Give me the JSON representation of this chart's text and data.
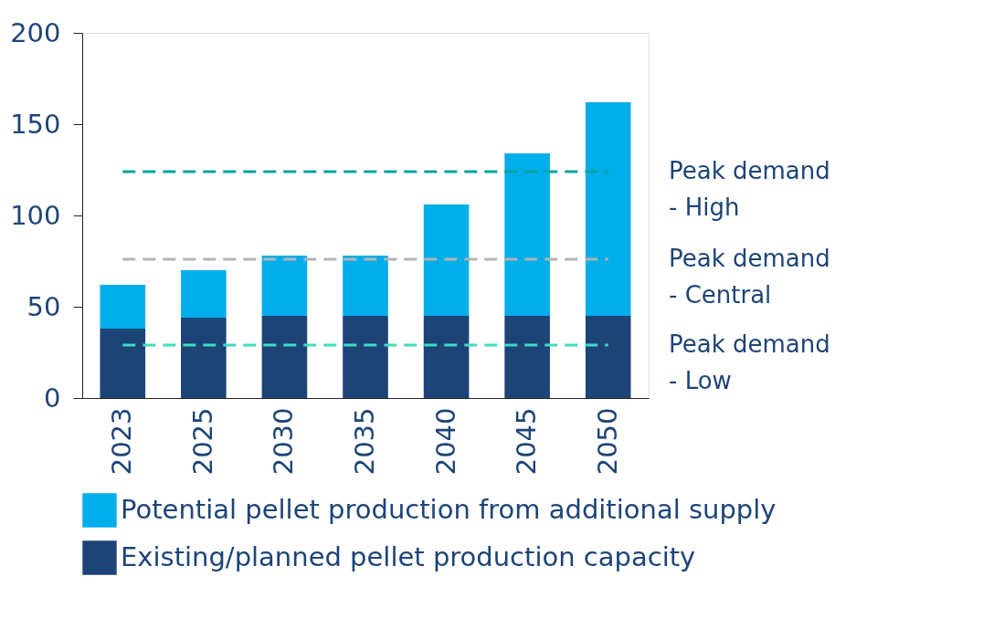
{
  "chart_data": {
    "type": "bar",
    "stacked": true,
    "categories": [
      "2023",
      "2025",
      "2030",
      "2035",
      "2040",
      "2045",
      "2050"
    ],
    "series": [
      {
        "name": "Existing/planned pellet production capacity",
        "color": "#1d4477",
        "values": [
          38,
          44,
          45,
          45,
          45,
          45,
          45
        ]
      },
      {
        "name": "Potential pellet production from additional supply",
        "color": "#00aeea",
        "values": [
          24,
          26,
          33,
          33,
          61,
          89,
          117
        ]
      }
    ],
    "ylim": [
      0,
      200
    ],
    "yticks": [
      0,
      50,
      100,
      150,
      200
    ],
    "grid": false,
    "legend": "bottom",
    "ref_lines": [
      {
        "axis": "y",
        "value": 124,
        "label": "Peak demand\n- High",
        "color": "#00a39b",
        "line_style": "dashed"
      },
      {
        "axis": "y",
        "value": 76,
        "label": "Peak demand\n- Central",
        "color": "#b3b3b3",
        "line_style": "dashed"
      },
      {
        "axis": "y",
        "value": 29,
        "label": "Peak demand\n- Low",
        "color": "#3edcc2",
        "line_style": "dashed"
      }
    ]
  }
}
